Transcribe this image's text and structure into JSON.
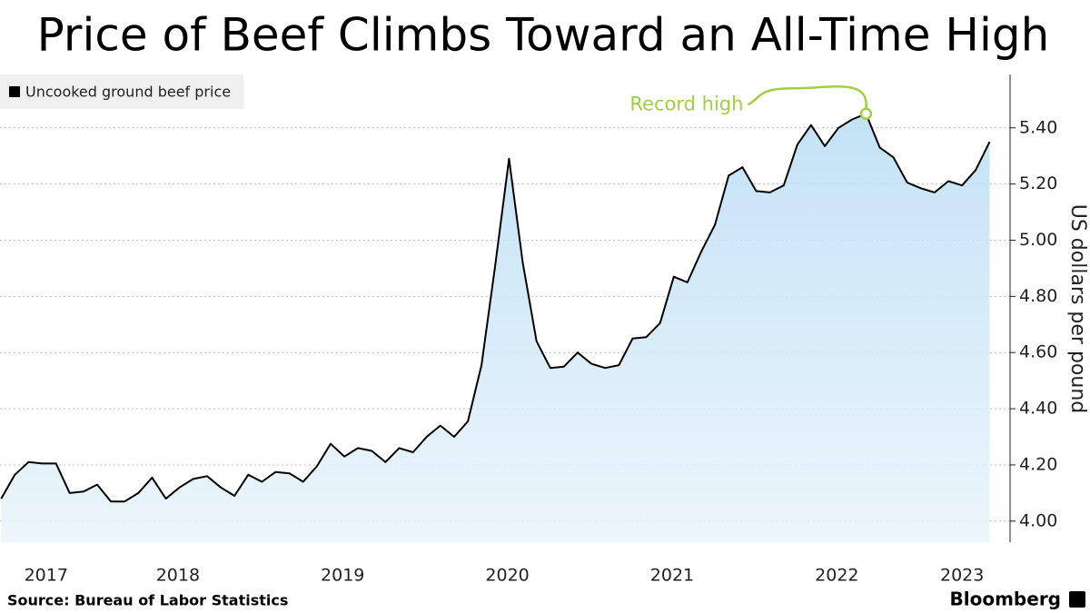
{
  "chart_data": {
    "type": "line",
    "title": "Price of Beef Climbs Toward an All-Time High",
    "y_axis_label": "US dollars per pound",
    "source": "Source:  Bureau of Labor Statistics",
    "brand": "Bloomberg",
    "annotation": "Record high",
    "annotation_color": "#9fd13c",
    "legend": "top-left",
    "grid": true,
    "xlim": [
      2017.41,
      2023.42
    ],
    "xticks": [
      {
        "value": 2017.69,
        "label": "2017"
      },
      {
        "value": 2018.49,
        "label": "2018"
      },
      {
        "value": 2019.49,
        "label": "2019"
      },
      {
        "value": 2020.49,
        "label": "2020"
      },
      {
        "value": 2021.49,
        "label": "2021"
      },
      {
        "value": 2022.49,
        "label": "2022"
      },
      {
        "value": 2023.25,
        "label": "2023"
      }
    ],
    "ylim": [
      3.925,
      5.59
    ],
    "yticks": [
      {
        "value": 4.0,
        "label": "4.00"
      },
      {
        "value": 4.2,
        "label": "4.20"
      },
      {
        "value": 4.4,
        "label": "4.40"
      },
      {
        "value": 4.6,
        "label": "4.60"
      },
      {
        "value": 4.8,
        "label": "4.80"
      },
      {
        "value": 5.0,
        "label": "5.00"
      },
      {
        "value": 5.2,
        "label": "5.20"
      },
      {
        "value": 5.4,
        "label": "5.40"
      }
    ],
    "x": [
      2017.417,
      2017.5,
      2017.583,
      2017.667,
      2017.75,
      2017.833,
      2017.917,
      2018.0,
      2018.083,
      2018.167,
      2018.25,
      2018.333,
      2018.417,
      2018.5,
      2018.583,
      2018.667,
      2018.75,
      2018.833,
      2018.917,
      2019.0,
      2019.083,
      2019.167,
      2019.25,
      2019.333,
      2019.417,
      2019.5,
      2019.583,
      2019.667,
      2019.75,
      2019.833,
      2019.917,
      2020.0,
      2020.083,
      2020.167,
      2020.25,
      2020.333,
      2020.417,
      2020.5,
      2020.583,
      2020.667,
      2020.75,
      2020.833,
      2020.917,
      2021.0,
      2021.083,
      2021.167,
      2021.25,
      2021.333,
      2021.417,
      2021.5,
      2021.583,
      2021.667,
      2021.75,
      2021.833,
      2021.917,
      2022.0,
      2022.083,
      2022.167,
      2022.25,
      2022.333,
      2022.417,
      2022.5,
      2022.583,
      2022.667,
      2022.75,
      2022.833,
      2022.917,
      2023.0,
      2023.083,
      2023.167,
      2023.25,
      2023.333,
      2023.417
    ],
    "series": [
      {
        "name": "Uncooked ground beef price",
        "color": "#000000",
        "values": [
          4.08,
          4.165,
          4.21,
          4.205,
          4.205,
          4.1,
          4.105,
          4.13,
          4.07,
          4.07,
          4.1,
          4.155,
          4.08,
          4.12,
          4.15,
          4.16,
          4.12,
          4.09,
          4.165,
          4.14,
          4.175,
          4.17,
          4.14,
          4.195,
          4.275,
          4.23,
          4.26,
          4.25,
          4.21,
          4.26,
          4.245,
          4.3,
          4.34,
          4.3,
          4.355,
          4.555,
          4.915,
          5.29,
          4.92,
          4.64,
          4.545,
          4.55,
          4.6,
          4.56,
          4.545,
          4.555,
          4.65,
          4.655,
          4.705,
          4.87,
          4.85,
          4.96,
          5.055,
          5.23,
          5.26,
          5.175,
          5.17,
          5.195,
          5.34,
          5.41,
          5.335,
          5.4,
          5.43,
          5.45,
          5.33,
          5.295,
          5.205,
          5.185,
          5.17,
          5.21,
          5.195,
          5.25,
          5.35
        ]
      }
    ]
  }
}
